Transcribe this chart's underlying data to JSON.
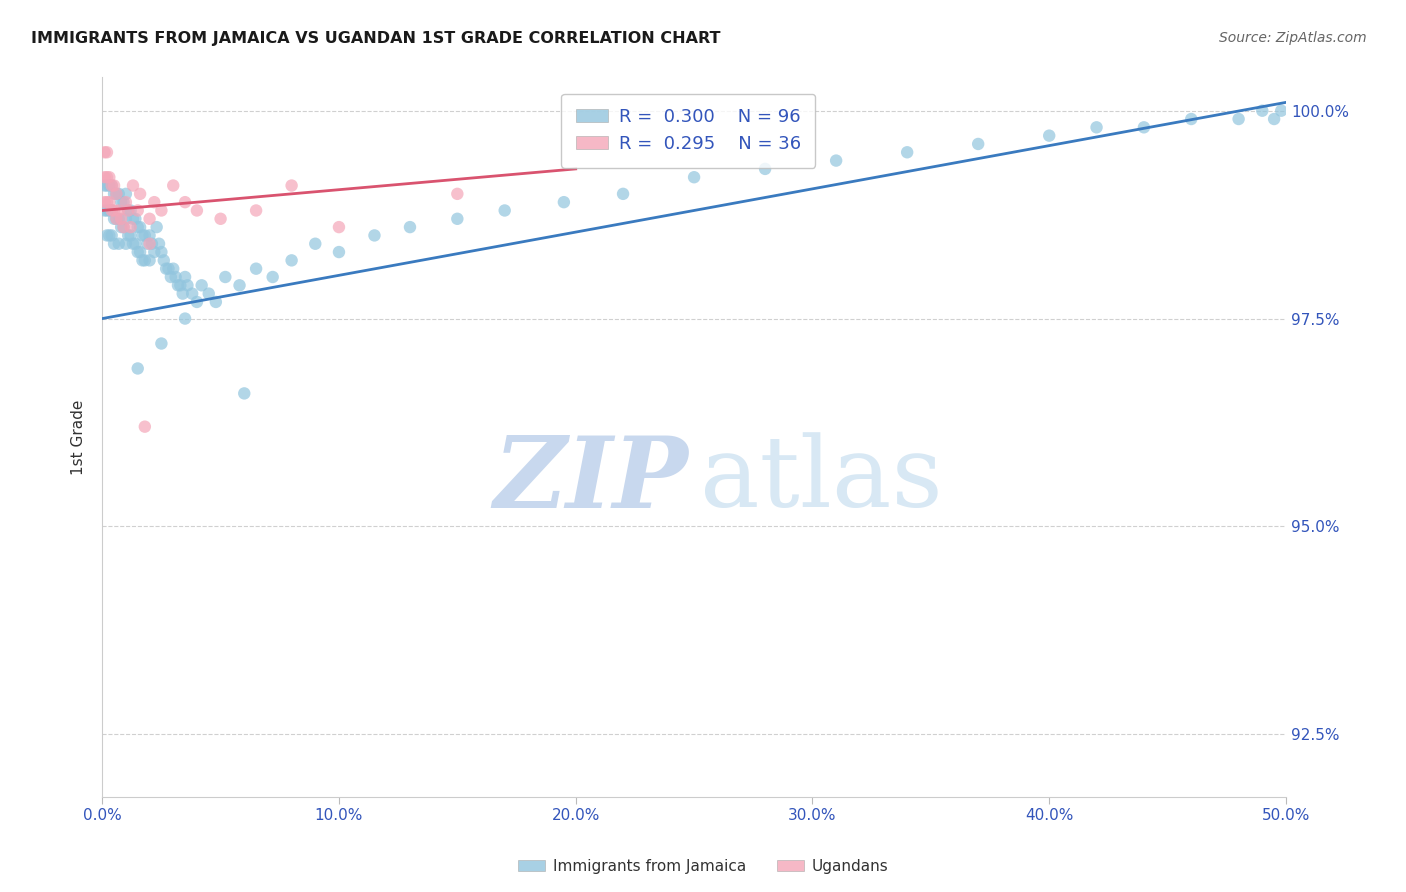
{
  "title": "IMMIGRANTS FROM JAMAICA VS UGANDAN 1ST GRADE CORRELATION CHART",
  "source": "Source: ZipAtlas.com",
  "ylabel": "1st Grade",
  "xlim": [
    0.0,
    0.5
  ],
  "ylim": [
    0.9175,
    1.004
  ],
  "ytick_vals": [
    0.925,
    0.95,
    0.975,
    1.0
  ],
  "ytick_labels": [
    "92.5%",
    "95.0%",
    "97.5%",
    "100.0%"
  ],
  "xtick_vals": [
    0.0,
    0.1,
    0.2,
    0.3,
    0.4,
    0.5
  ],
  "xtick_labels": [
    "0.0%",
    "10.0%",
    "20.0%",
    "30.0%",
    "40.0%",
    "50.0%"
  ],
  "blue_R": 0.3,
  "blue_N": 96,
  "pink_R": 0.295,
  "pink_N": 36,
  "blue_color": "#92c5de",
  "pink_color": "#f4a6b8",
  "blue_line_color": "#3a7abf",
  "pink_line_color": "#d9536f",
  "grid_color": "#d0d0d0",
  "watermark_zip_color": "#c8d8ee",
  "watermark_atlas_color": "#d8e8f4",
  "title_color": "#1a1a1a",
  "source_color": "#666666",
  "axis_label_color": "#333333",
  "tick_color": "#3355bb",
  "legend_color": "#3355bb",
  "blue_x": [
    0.001,
    0.001,
    0.002,
    0.002,
    0.002,
    0.003,
    0.003,
    0.003,
    0.004,
    0.004,
    0.004,
    0.005,
    0.005,
    0.005,
    0.006,
    0.006,
    0.007,
    0.007,
    0.007,
    0.008,
    0.008,
    0.009,
    0.009,
    0.01,
    0.01,
    0.01,
    0.011,
    0.011,
    0.012,
    0.012,
    0.013,
    0.013,
    0.014,
    0.014,
    0.015,
    0.015,
    0.016,
    0.016,
    0.017,
    0.017,
    0.018,
    0.018,
    0.019,
    0.02,
    0.02,
    0.021,
    0.022,
    0.023,
    0.024,
    0.025,
    0.026,
    0.027,
    0.028,
    0.029,
    0.03,
    0.031,
    0.032,
    0.033,
    0.034,
    0.035,
    0.036,
    0.038,
    0.04,
    0.042,
    0.045,
    0.048,
    0.052,
    0.058,
    0.065,
    0.072,
    0.08,
    0.09,
    0.1,
    0.115,
    0.13,
    0.15,
    0.17,
    0.195,
    0.22,
    0.25,
    0.28,
    0.31,
    0.34,
    0.37,
    0.4,
    0.42,
    0.44,
    0.46,
    0.48,
    0.49,
    0.495,
    0.498,
    0.035,
    0.025,
    0.015,
    0.06
  ],
  "blue_y": [
    0.991,
    0.988,
    0.991,
    0.988,
    0.985,
    0.991,
    0.988,
    0.985,
    0.991,
    0.988,
    0.985,
    0.99,
    0.987,
    0.984,
    0.99,
    0.987,
    0.99,
    0.987,
    0.984,
    0.989,
    0.986,
    0.989,
    0.986,
    0.99,
    0.987,
    0.984,
    0.988,
    0.985,
    0.988,
    0.985,
    0.987,
    0.984,
    0.987,
    0.984,
    0.986,
    0.983,
    0.986,
    0.983,
    0.985,
    0.982,
    0.985,
    0.982,
    0.984,
    0.985,
    0.982,
    0.984,
    0.983,
    0.986,
    0.984,
    0.983,
    0.982,
    0.981,
    0.981,
    0.98,
    0.981,
    0.98,
    0.979,
    0.979,
    0.978,
    0.98,
    0.979,
    0.978,
    0.977,
    0.979,
    0.978,
    0.977,
    0.98,
    0.979,
    0.981,
    0.98,
    0.982,
    0.984,
    0.983,
    0.985,
    0.986,
    0.987,
    0.988,
    0.989,
    0.99,
    0.992,
    0.993,
    0.994,
    0.995,
    0.996,
    0.997,
    0.998,
    0.998,
    0.999,
    0.999,
    1.0,
    0.999,
    1.0,
    0.975,
    0.972,
    0.969,
    0.966
  ],
  "pink_x": [
    0.001,
    0.001,
    0.001,
    0.002,
    0.002,
    0.002,
    0.003,
    0.003,
    0.004,
    0.004,
    0.005,
    0.005,
    0.006,
    0.006,
    0.007,
    0.008,
    0.009,
    0.01,
    0.011,
    0.012,
    0.013,
    0.015,
    0.016,
    0.018,
    0.02,
    0.022,
    0.025,
    0.03,
    0.035,
    0.04,
    0.05,
    0.065,
    0.08,
    0.1,
    0.15,
    0.02
  ],
  "pink_y": [
    0.995,
    0.992,
    0.989,
    0.995,
    0.992,
    0.989,
    0.992,
    0.989,
    0.991,
    0.988,
    0.991,
    0.988,
    0.99,
    0.987,
    0.988,
    0.987,
    0.986,
    0.989,
    0.988,
    0.986,
    0.991,
    0.988,
    0.99,
    0.962,
    0.987,
    0.989,
    0.988,
    0.991,
    0.989,
    0.988,
    0.987,
    0.988,
    0.991,
    0.986,
    0.99,
    0.984
  ],
  "blue_line_x": [
    0.0,
    0.5
  ],
  "blue_line_y": [
    0.975,
    1.001
  ],
  "pink_line_x": [
    0.0,
    0.2
  ],
  "pink_line_y": [
    0.988,
    0.993
  ]
}
